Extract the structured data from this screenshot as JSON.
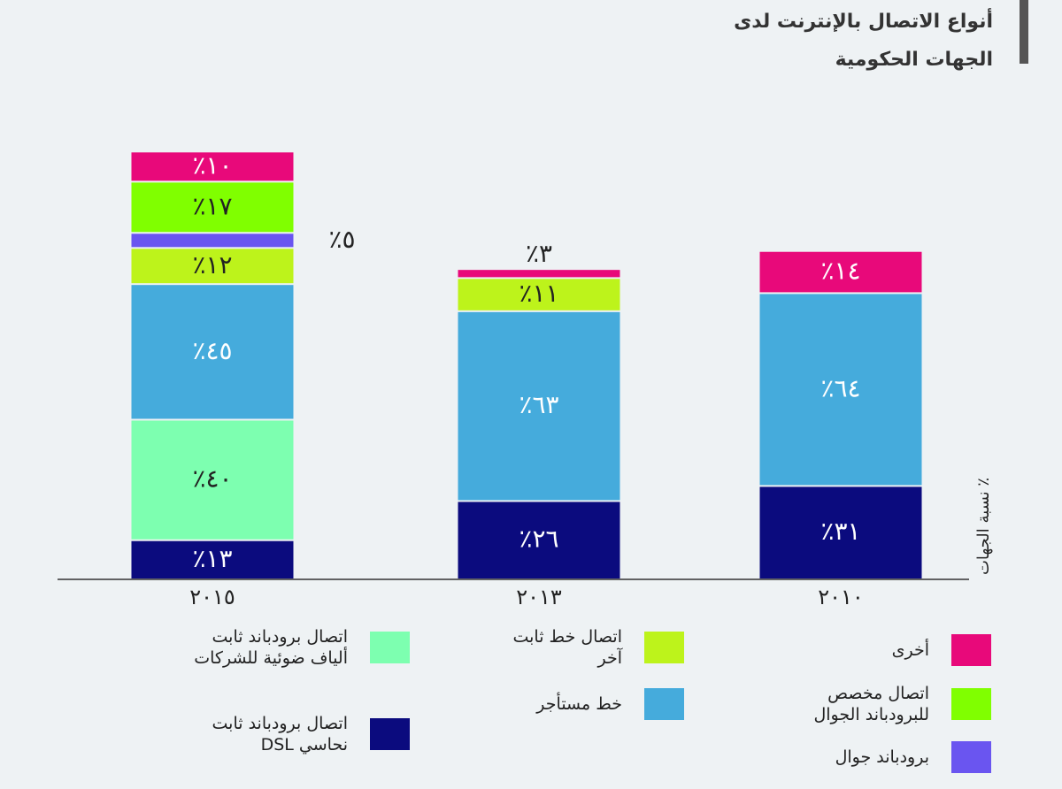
{
  "chart_data": {
    "type": "stacked_bar",
    "title": [
      "أنواع الاتصال بالإنترنت لدى",
      "الجهات الحكومية"
    ],
    "y_label": "نسبة الجهات ٪",
    "categories": [
      "٢٠١٥",
      "٢٠١٣",
      "٢٠١٠"
    ],
    "ylim": [
      0,
      160
    ],
    "series": [
      {
        "name": "اتصال برودباند ثابت\nنحاسي DSL",
        "color": "#0b0b7e",
        "values": [
          13,
          26,
          31
        ],
        "value_labels": [
          "٪١٣",
          "٪٢٦",
          "٪٣١"
        ]
      },
      {
        "name": "اتصال برودباند ثابت\nألياف ضوئية للشركات",
        "color": "#7dffb0",
        "values": [
          40,
          null,
          null
        ],
        "value_labels": [
          "٪٤٠",
          null,
          null
        ]
      },
      {
        "name": "خط مستأجر",
        "color": "#45abdc",
        "values": [
          45,
          63,
          64
        ],
        "value_labels": [
          "٪٤٥",
          "٪٦٣",
          "٪٦٤"
        ]
      },
      {
        "name": "اتصال خط ثابت\nآخر",
        "color": "#bdf31b",
        "values": [
          12,
          11,
          null
        ],
        "value_labels": [
          "٪١٢",
          "٪١١",
          null
        ]
      },
      {
        "name": "برودباند جوال",
        "color": "#6a55f0",
        "values": [
          5,
          null,
          null
        ],
        "value_labels": [
          "٪٥",
          null,
          null
        ]
      },
      {
        "name": "اتصال مخصص\nللبرودباند الجوال",
        "color": "#80ff00",
        "values": [
          17,
          null,
          null
        ],
        "value_labels": [
          "٪١٧",
          null,
          null
        ]
      },
      {
        "name": "أخرى",
        "color": "#e8097a",
        "values": [
          10,
          3,
          14
        ],
        "value_labels": [
          "٪١٠",
          "٪٣",
          "٪١٤"
        ]
      }
    ]
  }
}
